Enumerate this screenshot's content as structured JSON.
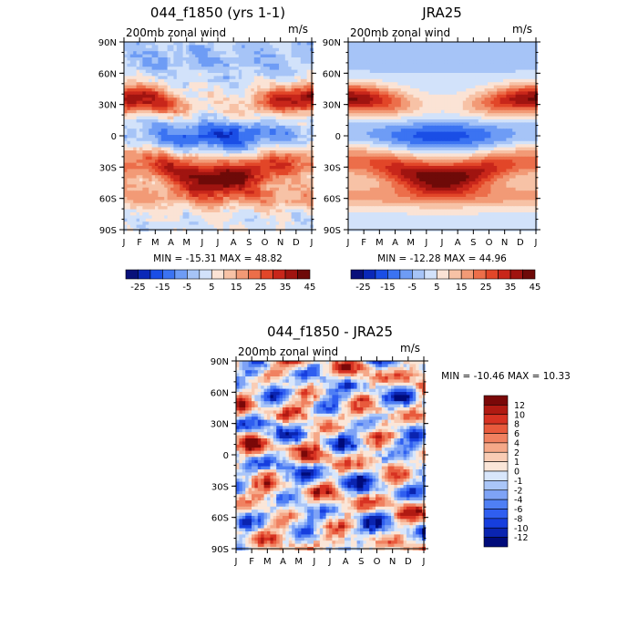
{
  "chart_data": [
    {
      "type": "heatmap",
      "title": "044_f1850 (yrs 1-1)",
      "subtitle": "200mb zonal wind",
      "units": "m/s",
      "stats": "MIN = -15.31 MAX =  48.82",
      "x_ticks": [
        "J",
        "F",
        "M",
        "A",
        "M",
        "J",
        "J",
        "A",
        "S",
        "O",
        "N",
        "D",
        "J"
      ],
      "y_ticks": [
        "90N",
        "60N",
        "30N",
        "0",
        "30S",
        "60S",
        "90S"
      ],
      "colorbar_ticks": [
        "-25",
        "-15",
        "-5",
        "5",
        "15",
        "25",
        "35",
        "45"
      ],
      "min": -15.31,
      "max": 48.82
    },
    {
      "type": "heatmap",
      "title": "JRA25",
      "subtitle": "200mb zonal wind",
      "units": "m/s",
      "stats": "MIN = -12.28 MAX =  44.96",
      "x_ticks": [
        "J",
        "F",
        "M",
        "A",
        "M",
        "J",
        "J",
        "A",
        "S",
        "O",
        "N",
        "D",
        "J"
      ],
      "y_ticks": [
        "90N",
        "60N",
        "30N",
        "0",
        "30S",
        "60S",
        "90S"
      ],
      "colorbar_ticks": [
        "-25",
        "-15",
        "-5",
        "5",
        "15",
        "25",
        "35",
        "45"
      ],
      "min": -12.28,
      "max": 44.96
    },
    {
      "type": "heatmap",
      "title": "044_f1850 - JRA25",
      "subtitle": "200mb zonal wind",
      "units": "m/s",
      "stats": "MIN = -10.46 MAX =  10.33",
      "x_ticks": [
        "J",
        "F",
        "M",
        "A",
        "M",
        "J",
        "J",
        "A",
        "S",
        "O",
        "N",
        "D",
        "J"
      ],
      "y_ticks": [
        "90N",
        "60N",
        "30N",
        "0",
        "30S",
        "60S",
        "90S"
      ],
      "colorbar_ticks": [
        "12",
        "10",
        "8",
        "6",
        "4",
        "2",
        "1",
        "0",
        "-1",
        "-2",
        "-4",
        "-6",
        "-8",
        "-10",
        "-12"
      ],
      "min": -10.46,
      "max": 10.33
    }
  ],
  "colors": {
    "abs_scale": [
      "#08107a",
      "#0a28b8",
      "#1a4ee6",
      "#3b73f2",
      "#6e9cf5",
      "#a6c4f7",
      "#d2e2fa",
      "#fbe3d5",
      "#f7c2a6",
      "#f29a76",
      "#ec6e4a",
      "#e24628",
      "#c8261a",
      "#a01410",
      "#6e0a08"
    ],
    "diff_scale": [
      "#000b7a",
      "#0a24b0",
      "#163ede",
      "#2f5ef0",
      "#4f7ff4",
      "#7ea3f6",
      "#aac6f8",
      "#d8e6fb",
      "#fbe6d8",
      "#f9ccb4",
      "#f5a888",
      "#f08160",
      "#e85a3c",
      "#d73222",
      "#b01a12",
      "#7a0808"
    ]
  }
}
